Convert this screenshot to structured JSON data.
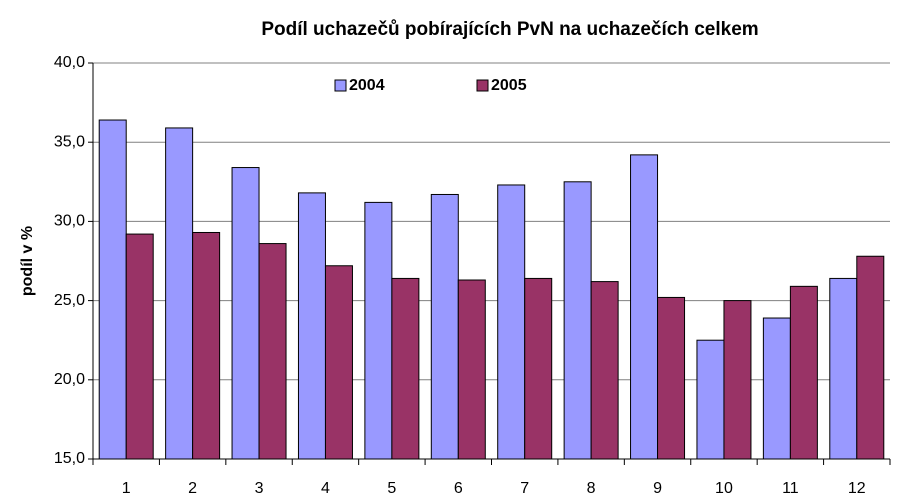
{
  "chart_data": {
    "type": "bar",
    "title": "Podíl uchazečů pobírajících PvN na uchazečích celkem",
    "y_label": "podíl v %",
    "categories": [
      "1",
      "2",
      "3",
      "4",
      "5",
      "6",
      "7",
      "8",
      "9",
      "10",
      "11",
      "12"
    ],
    "series": [
      {
        "name": "2004",
        "color": "#9999ff",
        "values": [
          36.4,
          35.9,
          33.4,
          31.8,
          31.2,
          31.7,
          32.3,
          32.5,
          34.2,
          22.5,
          23.9,
          26.4
        ]
      },
      {
        "name": "2005",
        "color": "#993366",
        "values": [
          29.2,
          29.3,
          28.6,
          27.2,
          26.4,
          26.3,
          26.4,
          26.2,
          25.2,
          25.0,
          25.9,
          27.8
        ]
      }
    ],
    "ylim": [
      15,
      40
    ],
    "yticks": [
      {
        "value": 15,
        "label": "15,0"
      },
      {
        "value": 20,
        "label": "20,0"
      },
      {
        "value": 25,
        "label": "25,0"
      },
      {
        "value": 30,
        "label": "30,0"
      },
      {
        "value": 35,
        "label": "35,0"
      },
      {
        "value": 40,
        "label": "40,0"
      }
    ],
    "grid": true,
    "legend": "top"
  }
}
